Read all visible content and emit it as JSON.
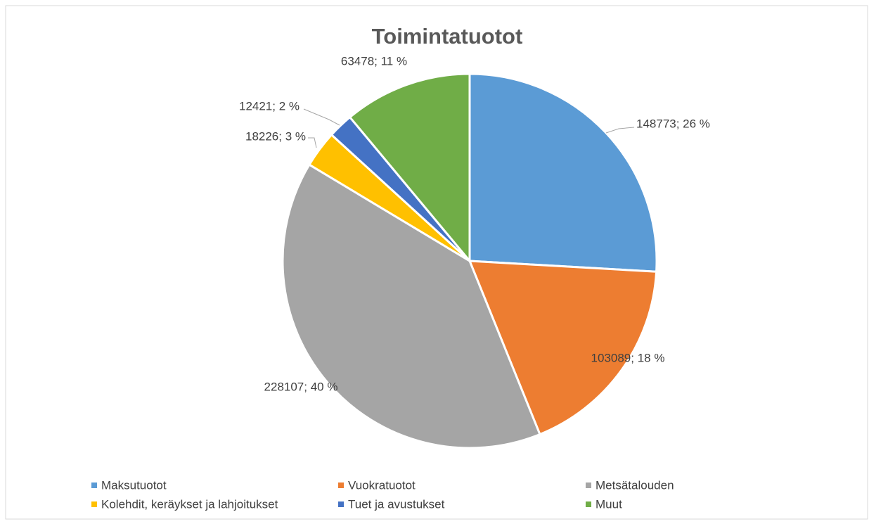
{
  "chart_data": {
    "type": "pie",
    "title": "Toimintatuotot",
    "categories": [
      "Maksutuotot",
      "Vuokratuotot",
      "Metsätalouden",
      "Kolehdit, keräykset ja lahjoitukset",
      "Tuet ja avustukset",
      "Muut"
    ],
    "values": [
      148773,
      103089,
      228107,
      18226,
      12421,
      63478
    ],
    "value_labels": [
      "148773; 26 %",
      "103089; 18 %",
      "228107; 40 %",
      "18226; 3 %",
      "12421; 2 %",
      "63478; 11 %"
    ],
    "colors": [
      "#5b9bd5",
      "#ed7d31",
      "#a5a5a5",
      "#ffc000",
      "#4472c4",
      "#70ad47"
    ],
    "legend": "bottom"
  }
}
